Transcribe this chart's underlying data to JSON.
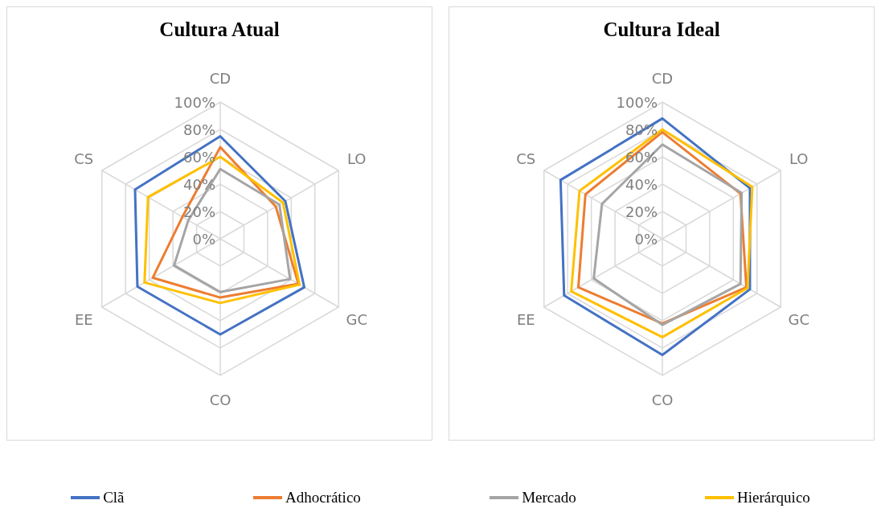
{
  "chart_data": [
    {
      "type": "radar",
      "title": "Cultura Atual",
      "categories": [
        "CD",
        "LO",
        "GC",
        "CO",
        "EE",
        "CS"
      ],
      "ylim": [
        0,
        100
      ],
      "yticks": [
        {
          "value": 0,
          "label": "0%"
        },
        {
          "value": 20,
          "label": "20%"
        },
        {
          "value": 40,
          "label": "40%"
        },
        {
          "value": 60,
          "label": "60%"
        },
        {
          "value": 80,
          "label": "80%"
        },
        {
          "value": 100,
          "label": "100%"
        }
      ],
      "grid": true,
      "legend": "bottom",
      "series": [
        {
          "name": "Clã",
          "color": "#4472c4",
          "values": [
            75,
            55,
            71,
            70,
            70,
            72
          ]
        },
        {
          "name": "Adhocrático",
          "color": "#ed7d31",
          "values": [
            67,
            47,
            66,
            43,
            57,
            32
          ]
        },
        {
          "name": "Mercado",
          "color": "#a5a5a5",
          "values": [
            51,
            50,
            59,
            39,
            39,
            27
          ]
        },
        {
          "name": "Hierárquico",
          "color": "#ffc000",
          "values": [
            60,
            53,
            67,
            47,
            64,
            61
          ]
        }
      ]
    },
    {
      "type": "radar",
      "title": "Cultura Ideal",
      "categories": [
        "CD",
        "LO",
        "GC",
        "CO",
        "EE",
        "CS"
      ],
      "ylim": [
        0,
        100
      ],
      "yticks": [
        {
          "value": 0,
          "label": "0%"
        },
        {
          "value": 20,
          "label": "20%"
        },
        {
          "value": 40,
          "label": "40%"
        },
        {
          "value": 60,
          "label": "60%"
        },
        {
          "value": 80,
          "label": "80%"
        },
        {
          "value": 100,
          "label": "100%"
        }
      ],
      "grid": true,
      "series": [
        {
          "color": "#4472c4",
          "values": [
            88,
            74,
            74,
            85,
            83,
            86
          ]
        },
        {
          "color": "#ed7d31",
          "values": [
            78,
            66,
            71,
            62,
            71,
            65
          ]
        },
        {
          "color": "#a5a5a5",
          "values": [
            69,
            67,
            66,
            63,
            58,
            51
          ]
        },
        {
          "color": "#ffc000",
          "values": [
            80,
            76,
            72,
            72,
            77,
            70
          ]
        }
      ]
    }
  ]
}
